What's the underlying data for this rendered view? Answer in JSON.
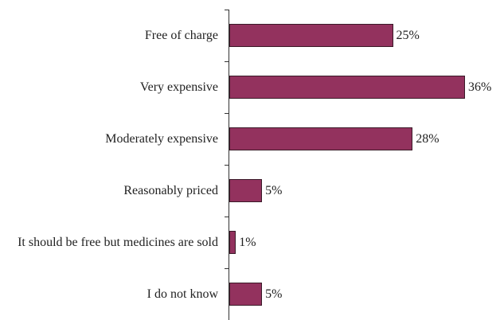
{
  "chart_data": {
    "type": "bar",
    "orientation": "horizontal",
    "categories": [
      "Free of charge",
      "Very expensive",
      "Moderately expensive",
      "Reasonably priced",
      "It should be free but medicines are sold",
      "I do not know"
    ],
    "values": [
      25,
      36,
      28,
      5,
      1,
      5
    ],
    "value_labels": [
      "25%",
      "36%",
      "28%",
      "5%",
      "1%",
      "5%"
    ],
    "color": "#93325e"
  }
}
